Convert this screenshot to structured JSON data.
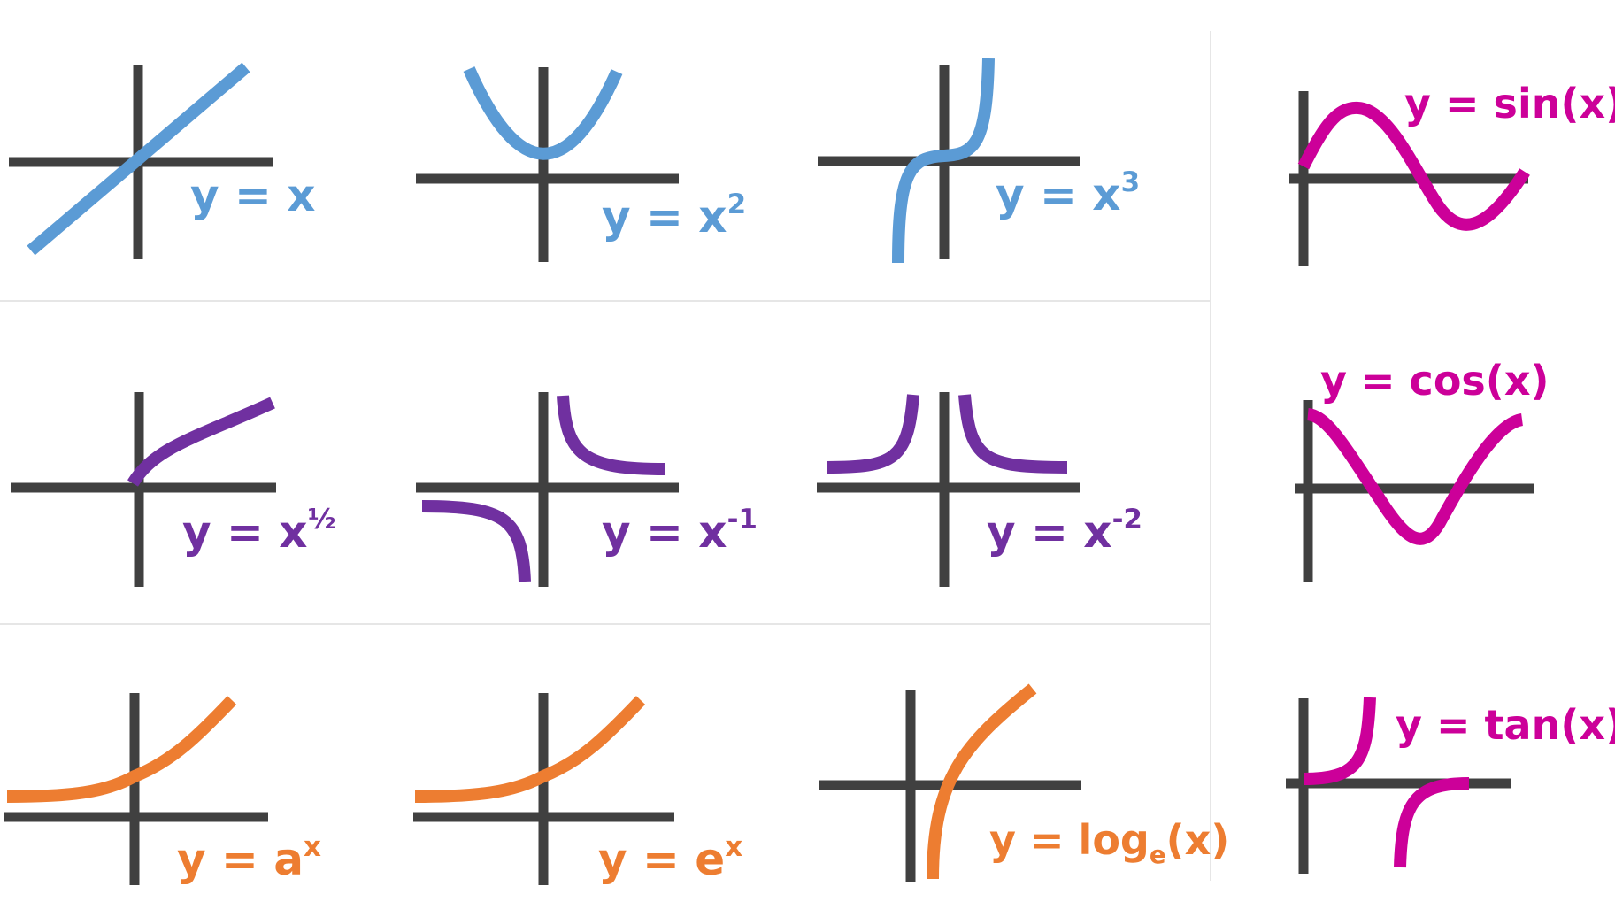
{
  "colors": {
    "axis": "#404040",
    "divider": "#e6e6e6",
    "power": "#5b9bd5",
    "inverse": "#7030a0",
    "exponential": "#ed7d31",
    "trig": "#cc0099"
  },
  "panels": [
    {
      "id": "linear",
      "curve": "y=x",
      "color": "power",
      "label": {
        "base": "y = x",
        "sup": "",
        "sub": "",
        "tail": ""
      }
    },
    {
      "id": "square",
      "curve": "y=x^2",
      "color": "power",
      "label": {
        "base": "y = x",
        "sup": "2",
        "sub": "",
        "tail": ""
      }
    },
    {
      "id": "cube",
      "curve": "y=x^3",
      "color": "power",
      "label": {
        "base": "y = x",
        "sup": "3",
        "sub": "",
        "tail": ""
      }
    },
    {
      "id": "sqrt",
      "curve": "y=x^1/2",
      "color": "inverse",
      "label": {
        "base": "y = x",
        "sup": "½",
        "sub": "",
        "tail": ""
      }
    },
    {
      "id": "reciprocal",
      "curve": "y=x^-1",
      "color": "inverse",
      "label": {
        "base": "y = x",
        "sup": "-1",
        "sub": "",
        "tail": ""
      }
    },
    {
      "id": "inv-square",
      "curve": "y=x^-2",
      "color": "inverse",
      "label": {
        "base": "y = x",
        "sup": "-2",
        "sub": "",
        "tail": ""
      }
    },
    {
      "id": "exp-a",
      "curve": "y=a^x",
      "color": "exponential",
      "label": {
        "base": "y = a",
        "sup": "x",
        "sub": "",
        "tail": ""
      }
    },
    {
      "id": "exp-e",
      "curve": "y=e^x",
      "color": "exponential",
      "label": {
        "base": "y = e",
        "sup": "x",
        "sub": "",
        "tail": ""
      }
    },
    {
      "id": "log",
      "curve": "y=log(x)",
      "color": "exponential",
      "label": {
        "base": "y = log",
        "sup": "",
        "sub": "e",
        "tail": "(x)"
      }
    },
    {
      "id": "sin",
      "curve": "y=sin(x)",
      "color": "trig",
      "label": {
        "base": "y = sin(x)",
        "sup": "",
        "sub": "",
        "tail": ""
      }
    },
    {
      "id": "cos",
      "curve": "y=cos(x)",
      "color": "trig",
      "label": {
        "base": "y = cos(x)",
        "sup": "",
        "sub": "",
        "tail": ""
      }
    },
    {
      "id": "tan",
      "curve": "y=tan(x)",
      "color": "trig",
      "label": {
        "base": "y = tan(x)",
        "sup": "",
        "sub": "",
        "tail": ""
      }
    }
  ]
}
